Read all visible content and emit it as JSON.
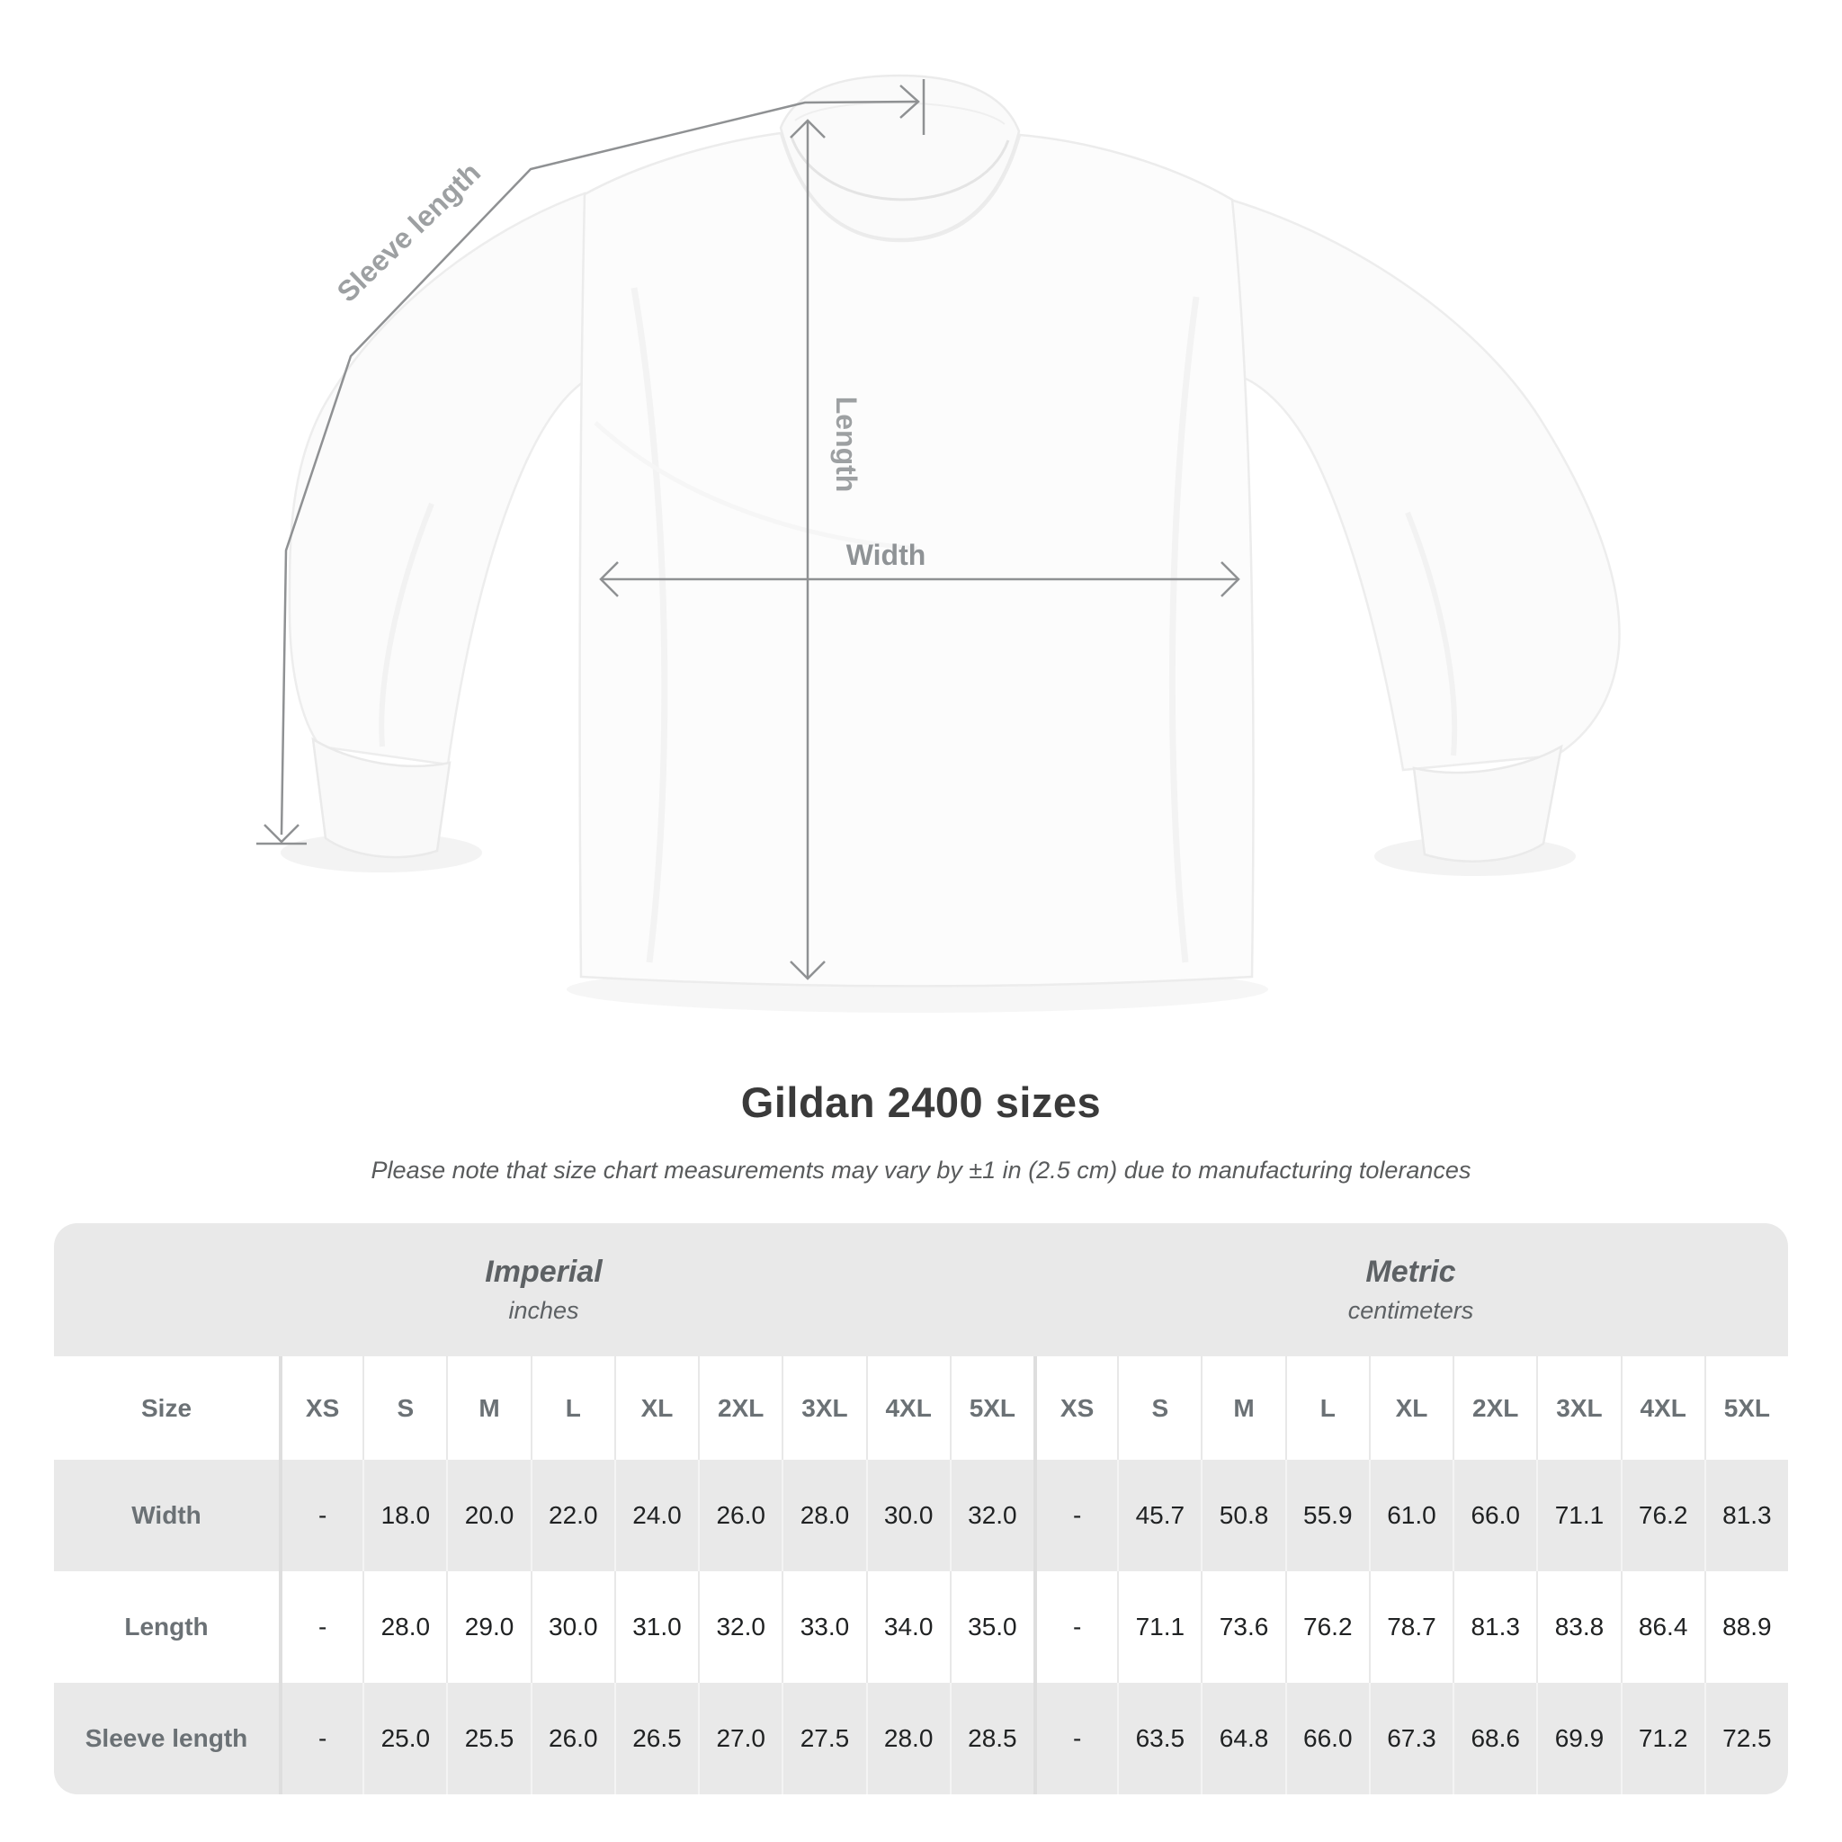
{
  "title": "Gildan 2400 sizes",
  "subtitle": "Please note that size chart measurements may vary by ±1 in (2.5 cm) due to manufacturing tolerances",
  "diagram": {
    "sleeve_length_label": "Sleeve length",
    "length_label": "Length",
    "width_label": "Width"
  },
  "colors": {
    "measure_line": "#8f9193",
    "diagram_label": "#9da0a2",
    "table_band_gray": "#e9e9e9",
    "row_stripe_gray": "#e9e9e9",
    "header_text_gray": "#6b7175",
    "value_text": "#202223",
    "title_text": "#3a3a3a"
  },
  "chart_data": {
    "type": "table",
    "title": "Gildan 2400 sizes",
    "unit_groups": [
      {
        "label": "Imperial",
        "sublabel": "inches"
      },
      {
        "label": "Metric",
        "sublabel": "centimeters"
      }
    ],
    "size_col_header": "Size",
    "sizes": [
      "XS",
      "S",
      "M",
      "L",
      "XL",
      "2XL",
      "3XL",
      "4XL",
      "5XL"
    ],
    "rows": [
      {
        "label": "Width",
        "imperial": [
          "-",
          "18.0",
          "20.0",
          "22.0",
          "24.0",
          "26.0",
          "28.0",
          "30.0",
          "32.0"
        ],
        "metric": [
          "-",
          "45.7",
          "50.8",
          "55.9",
          "61.0",
          "66.0",
          "71.1",
          "76.2",
          "81.3"
        ]
      },
      {
        "label": "Length",
        "imperial": [
          "-",
          "28.0",
          "29.0",
          "30.0",
          "31.0",
          "32.0",
          "33.0",
          "34.0",
          "35.0"
        ],
        "metric": [
          "-",
          "71.1",
          "73.6",
          "76.2",
          "78.7",
          "81.3",
          "83.8",
          "86.4",
          "88.9"
        ]
      },
      {
        "label": "Sleeve length",
        "imperial": [
          "-",
          "25.0",
          "25.5",
          "26.0",
          "26.5",
          "27.0",
          "27.5",
          "28.0",
          "28.5"
        ],
        "metric": [
          "-",
          "63.5",
          "64.8",
          "66.0",
          "67.3",
          "68.6",
          "69.9",
          "71.2",
          "72.5"
        ]
      }
    ]
  }
}
